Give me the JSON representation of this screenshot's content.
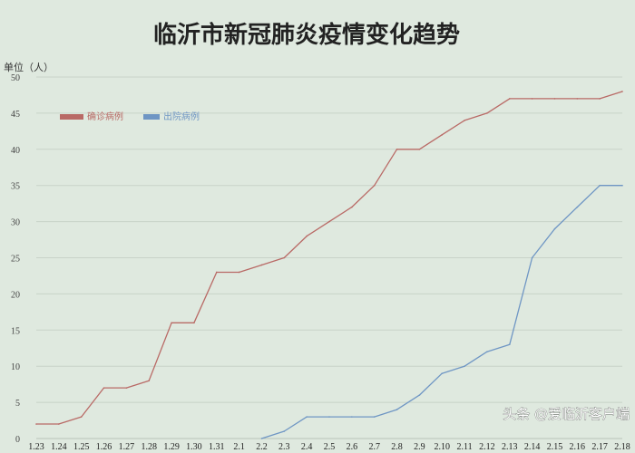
{
  "chart_data": {
    "type": "line",
    "title": "临沂市新冠肺炎疫情变化趋势",
    "ylabel": "单位（人）",
    "xlabel": "",
    "ylim": [
      0,
      50
    ],
    "yticks": [
      0,
      5,
      10,
      15,
      20,
      25,
      30,
      35,
      40,
      45,
      50
    ],
    "grid": true,
    "legend_position": "top-left",
    "categories": [
      "1.23",
      "1.24",
      "1.25",
      "1.26",
      "1.27",
      "1.28",
      "1.29",
      "1.30",
      "1.31",
      "2.1",
      "2.2",
      "2.3",
      "2.4",
      "2.5",
      "2.6",
      "2.7",
      "2.8",
      "2.9",
      "2.10",
      "2.11",
      "2.12",
      "2.13",
      "2.14",
      "2.15",
      "2.16",
      "2.17",
      "2.18"
    ],
    "series": [
      {
        "name": "确诊病例",
        "color": "#b96a66",
        "values": [
          2,
          2,
          3,
          7,
          7,
          8,
          16,
          16,
          23,
          23,
          24,
          25,
          28,
          30,
          32,
          35,
          40,
          40,
          42,
          44,
          45,
          47,
          47,
          47,
          47,
          47,
          48
        ]
      },
      {
        "name": "出院病例",
        "color": "#6f96c4",
        "start_index": 10,
        "values": [
          null,
          null,
          null,
          null,
          null,
          null,
          null,
          null,
          null,
          null,
          0,
          1,
          3,
          3,
          3,
          3,
          4,
          6,
          9,
          10,
          12,
          13,
          25,
          29,
          32,
          35,
          35
        ]
      }
    ]
  },
  "watermark": "头条 @爱临沂客户端"
}
